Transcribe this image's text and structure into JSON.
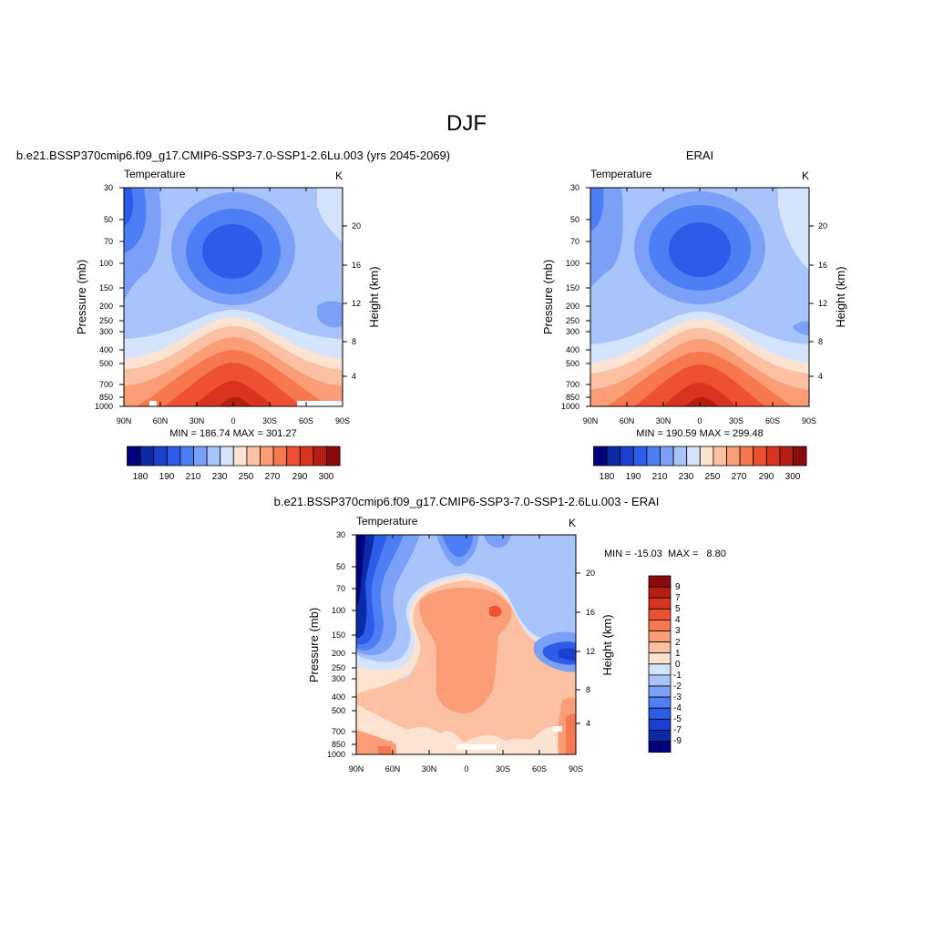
{
  "figure": {
    "title": "DJF"
  },
  "chart_data": [
    {
      "type": "heatmap",
      "title": "b.e21.BSSP370cmip6.f09_g17.CMIP6-SSP3-7.0-SSP1-2.6Lu.003 (yrs 2045-2069)",
      "subtitle_left": "Temperature",
      "subtitle_right": "K",
      "xlabel": "",
      "ylabel": "Pressure (mb)",
      "y2label": "Height (km)",
      "x_ticks": [
        "90N",
        "60N",
        "30N",
        "0",
        "30S",
        "60S",
        "90S"
      ],
      "y_ticks": [
        "30",
        "50",
        "70",
        "100",
        "150",
        "200",
        "250",
        "300",
        "400",
        "500",
        "700",
        "850",
        "1000"
      ],
      "y2_ticks": [
        "20",
        "16",
        "12",
        "8",
        "4"
      ],
      "min_max_text": "MIN = 186.74  MAX = 301.27",
      "min": 186.74,
      "max": 301.27,
      "colorbar": {
        "orientation": "horizontal",
        "tick_labels": [
          "180",
          "190",
          "210",
          "230",
          "250",
          "270",
          "290",
          "300"
        ],
        "colors": [
          "#00007f",
          "#0a2aa8",
          "#1c3fd0",
          "#2e5be8",
          "#4d7ef5",
          "#7aa0f8",
          "#a9c4fb",
          "#d4e4fd",
          "#fde3d2",
          "#fcc0a2",
          "#fb9d76",
          "#f7774f",
          "#ee5131",
          "#d83420",
          "#b51f12",
          "#8b0a0a"
        ]
      }
    },
    {
      "type": "heatmap",
      "title": "ERAI",
      "subtitle_left": "Temperature",
      "subtitle_right": "K",
      "xlabel": "",
      "ylabel": "Pressure (mb)",
      "y2label": "Height (km)",
      "x_ticks": [
        "90N",
        "60N",
        "30N",
        "0",
        "30S",
        "60S",
        "90S"
      ],
      "y_ticks": [
        "30",
        "50",
        "70",
        "100",
        "150",
        "200",
        "250",
        "300",
        "400",
        "500",
        "700",
        "850",
        "1000"
      ],
      "y2_ticks": [
        "20",
        "16",
        "12",
        "8",
        "4"
      ],
      "min_max_text": "MIN = 190.59  MAX = 299.48",
      "min": 190.59,
      "max": 299.48,
      "colorbar": {
        "orientation": "horizontal",
        "tick_labels": [
          "180",
          "190",
          "210",
          "230",
          "250",
          "270",
          "290",
          "300"
        ],
        "colors": [
          "#00007f",
          "#0a2aa8",
          "#1c3fd0",
          "#2e5be8",
          "#4d7ef5",
          "#7aa0f8",
          "#a9c4fb",
          "#d4e4fd",
          "#fde3d2",
          "#fcc0a2",
          "#fb9d76",
          "#f7774f",
          "#ee5131",
          "#d83420",
          "#b51f12",
          "#8b0a0a"
        ]
      }
    },
    {
      "type": "heatmap",
      "title": "b.e21.BSSP370cmip6.f09_g17.CMIP6-SSP3-7.0-SSP1-2.6Lu.003 - ERAI",
      "subtitle_left": "Temperature",
      "subtitle_right": "K",
      "xlabel": "",
      "ylabel": "Pressure (mb)",
      "y2label": "Height (km)",
      "x_ticks": [
        "90N",
        "60N",
        "30N",
        "0",
        "30S",
        "60S",
        "90S"
      ],
      "y_ticks": [
        "30",
        "50",
        "70",
        "100",
        "150",
        "200",
        "250",
        "300",
        "400",
        "500",
        "700",
        "850",
        "1000"
      ],
      "y2_ticks": [
        "20",
        "16",
        "12",
        "8",
        "4"
      ],
      "min_max_text": "MIN = -15.03  MAX =   8.80",
      "min": -15.03,
      "max": 8.8,
      "colorbar": {
        "orientation": "vertical",
        "tick_labels": [
          "9",
          "7",
          "5",
          "4",
          "3",
          "2",
          "1",
          "0",
          "-1",
          "-2",
          "-3",
          "-4",
          "-5",
          "-7",
          "-9"
        ],
        "colors": [
          "#8b0a0a",
          "#b51f12",
          "#d83420",
          "#ee5131",
          "#f7774f",
          "#fb9d76",
          "#fcc0a2",
          "#fde3d2",
          "#d4e4fd",
          "#a9c4fb",
          "#7aa0f8",
          "#4d7ef5",
          "#2e5be8",
          "#1c3fd0",
          "#0a2aa8",
          "#00007f"
        ]
      }
    }
  ]
}
